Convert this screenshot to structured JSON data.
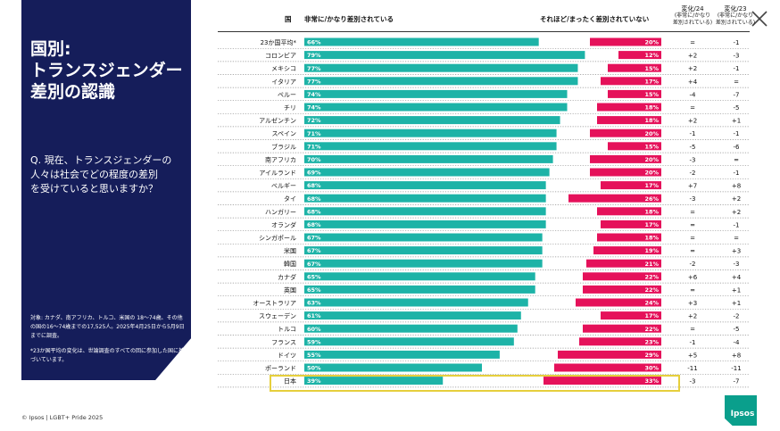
{
  "panel": {
    "title": "国別:\nトランスジェンダー\n差別の認識",
    "question": "Q. 現在、トランスジェンダーの\n人々は社会でどの程度の差別\nを受けていると思いますか？",
    "note1": "対象: カナダ、南アフリカ、トルコ、米国の 18～74歳、その他の国の16～74歳までの17,525人。2025年4月25日から5月9日までに調査。",
    "note2": "*23か国平均の変化は、世論調査のすべての回に参加した国に基づいています。"
  },
  "footer": {
    "copyright": "© Ipsos | LGBT+ Pride 2025",
    "logo": "Ipsos"
  },
  "headers": {
    "country": "国",
    "left": "非常に/かなり差別されている",
    "right": "それほど/まったく差別されていない",
    "change24": [
      "変化/24",
      "(非常に/かなり",
      "差別されている)"
    ],
    "change23": [
      "変化/23",
      "(非常に/かなり",
      "差別されている)"
    ]
  },
  "chart_data": {
    "type": "bar",
    "categories": [
      "23か国平均*",
      "コロンビア",
      "メキシコ",
      "イタリア",
      "ペルー",
      "チリ",
      "アルゼンチン",
      "スペイン",
      "ブラジル",
      "南アフリカ",
      "アイルランド",
      "ベルギー",
      "タイ",
      "ハンガリー",
      "オランダ",
      "シンガポール",
      "米国",
      "韓国",
      "カナダ",
      "英国",
      "オーストラリア",
      "スウェーデン",
      "トルコ",
      "フランス",
      "ドイツ",
      "ポーランド",
      "日本"
    ],
    "series": [
      {
        "name": "非常に/かなり差別されている",
        "values": [
          66,
          79,
          77,
          77,
          74,
          74,
          72,
          71,
          71,
          70,
          69,
          68,
          68,
          68,
          68,
          67,
          67,
          67,
          65,
          65,
          63,
          61,
          60,
          59,
          55,
          50,
          39
        ],
        "labels": [
          "66%",
          "79%",
          "77%",
          "77%",
          "74%",
          "74%",
          "72%",
          "71%",
          "71%",
          "70%",
          "69%",
          "68%",
          "68%",
          "68%",
          "68%",
          "67%",
          "67%",
          "67%",
          "65%",
          "65%",
          "63%",
          "61%",
          "60%",
          "59%",
          "55%",
          "50%",
          "39%"
        ]
      },
      {
        "name": "それほど/まったく差別されていない",
        "values": [
          20,
          12,
          15,
          17,
          15,
          18,
          18,
          20,
          15,
          20,
          20,
          17,
          26,
          18,
          17,
          18,
          19,
          21,
          22,
          22,
          24,
          17,
          22,
          23,
          29,
          30,
          33
        ],
        "labels": [
          "20%",
          "12%",
          "15%",
          "17%",
          "15%",
          "18%",
          "18%",
          "20%",
          "15%",
          "20%",
          "20%",
          "17%",
          "26%",
          "18%",
          "17%",
          "18%",
          "19%",
          "21%",
          "22%",
          "22%",
          "24%",
          "17%",
          "22%",
          "23%",
          "29%",
          "30%",
          "33%"
        ]
      }
    ],
    "change24": [
      "=",
      "+2",
      "+2",
      "+4",
      "-4",
      "=",
      "+2",
      "-1",
      "-5",
      "-3",
      "-2",
      "+7",
      "-3",
      "=",
      "=",
      "=",
      "=",
      "-2",
      "+6",
      "=",
      "+3",
      "+2",
      "=",
      "-1",
      "+5",
      "-11",
      "-3"
    ],
    "change23": [
      "-1",
      "-3",
      "-1",
      "=",
      "-7",
      "-5",
      "+1",
      "-1",
      "-6",
      "=",
      "-1",
      "+8",
      "+2",
      "+2",
      "-1",
      "=",
      "+3",
      "-3",
      "+4",
      "+1",
      "+1",
      "-2",
      "-5",
      "-4",
      "+8",
      "-11",
      "-7"
    ],
    "highlight": "日本",
    "colors": {
      "left": "#1db3a7",
      "right": "#e5115a",
      "grid": "#8f8f8f",
      "highlight": "#e6cf3c"
    }
  }
}
